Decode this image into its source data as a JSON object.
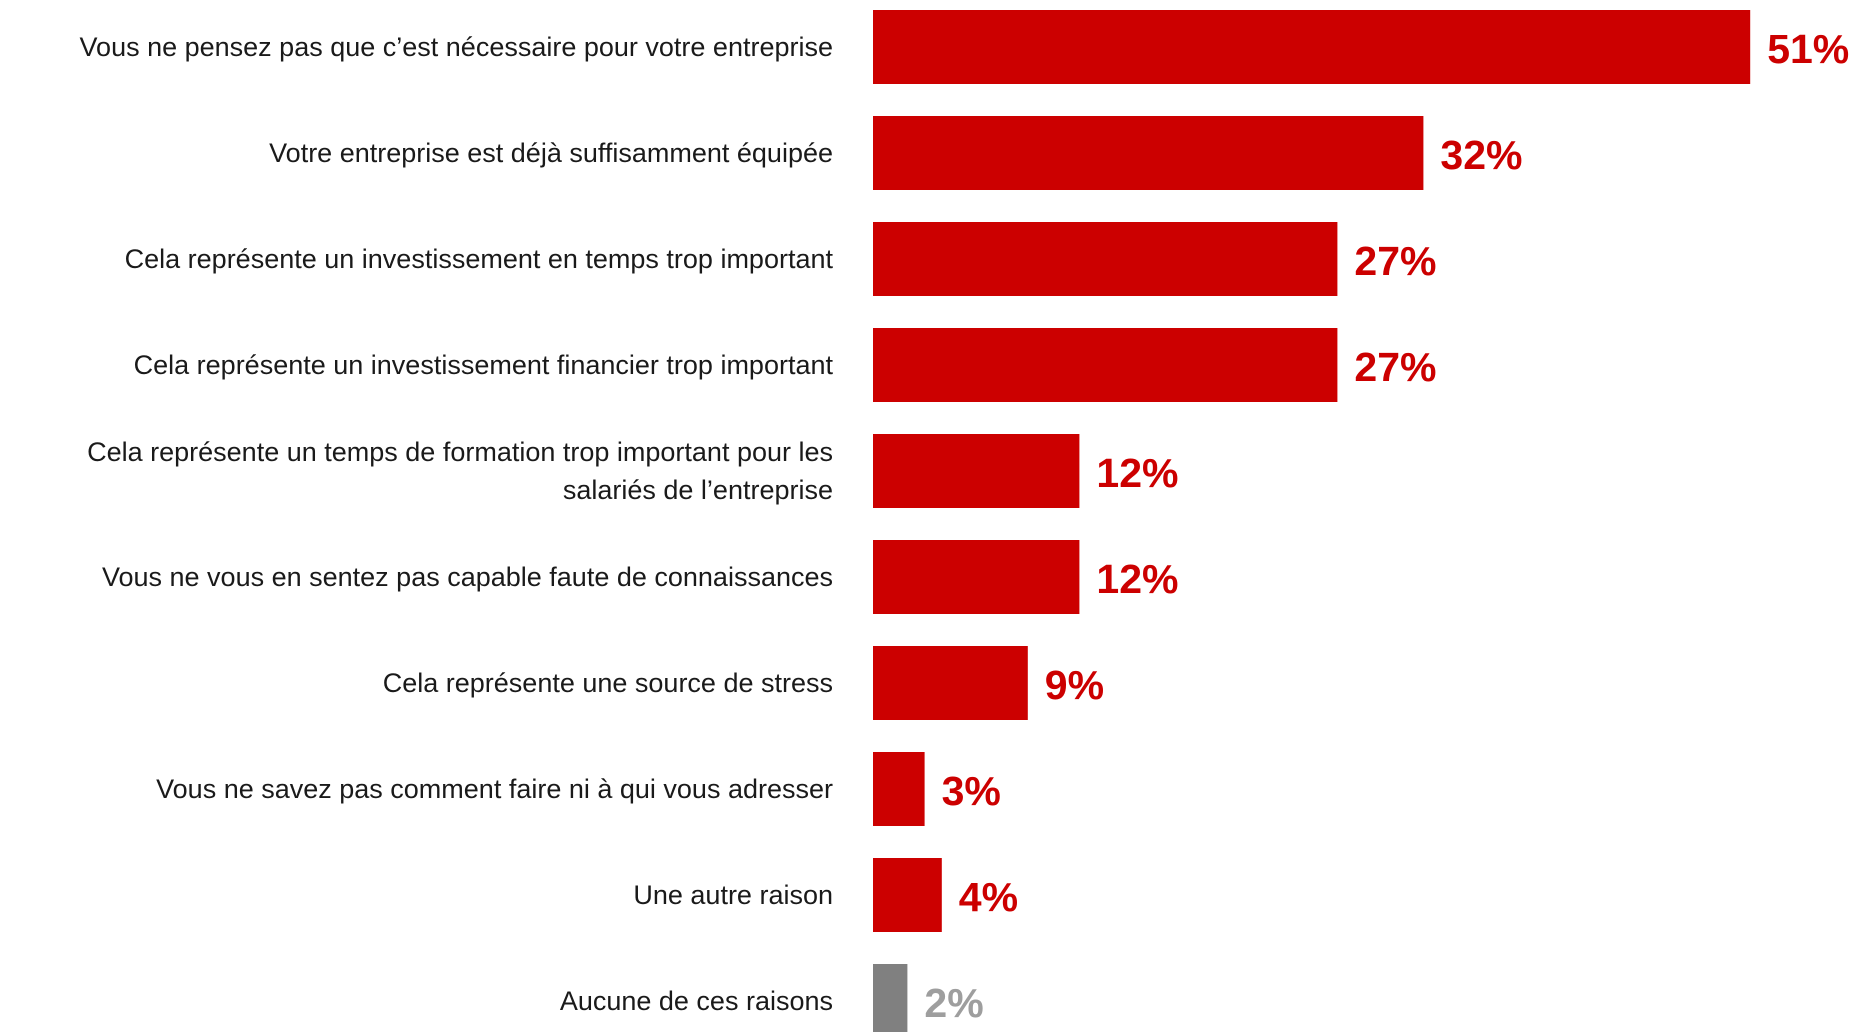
{
  "chart_data": {
    "type": "bar",
    "orientation": "horizontal",
    "title": "",
    "xlabel": "",
    "ylabel": "",
    "xlim": [
      0,
      55
    ],
    "grid": false,
    "legend": "none",
    "categories": [
      [
        "Vous ne pensez pas que c’est nécessaire pour votre entreprise"
      ],
      [
        "Votre entreprise est déjà suffisamment équipée"
      ],
      [
        "Cela représente un investissement en temps trop important"
      ],
      [
        "Cela représente un investissement financier trop important"
      ],
      [
        "Cela représente un temps de formation trop important pour les",
        "salariés de l’entreprise"
      ],
      [
        "Vous ne vous en sentez pas capable faute de connaissances"
      ],
      [
        "Cela représente une source de stress"
      ],
      [
        "Vous ne savez pas comment faire ni à qui vous adresser"
      ],
      [
        "Une autre raison"
      ],
      [
        "Aucune de ces raisons"
      ]
    ],
    "values": [
      51,
      32,
      27,
      27,
      12,
      12,
      9,
      3,
      4,
      2
    ],
    "value_labels": [
      "51%",
      "32%",
      "27%",
      "27%",
      "12%",
      "12%",
      "9%",
      "3%",
      "4%",
      "2%"
    ],
    "bar_colors": [
      "#cc0000",
      "#cc0000",
      "#cc0000",
      "#cc0000",
      "#cc0000",
      "#cc0000",
      "#cc0000",
      "#cc0000",
      "#cc0000",
      "#808080"
    ],
    "label_colors": [
      "#cc0000",
      "#cc0000",
      "#cc0000",
      "#cc0000",
      "#cc0000",
      "#cc0000",
      "#cc0000",
      "#cc0000",
      "#cc0000",
      "#9e9e9e"
    ]
  }
}
